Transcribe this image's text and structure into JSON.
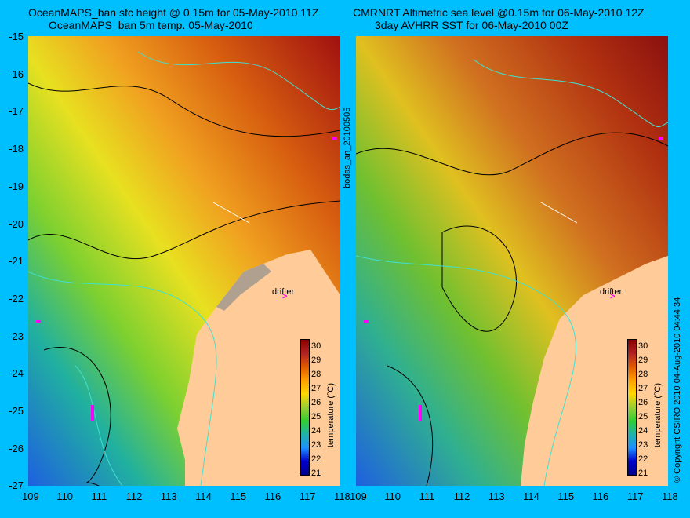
{
  "left_panel": {
    "title_line1": "OceanMAPS_ban sfc height @ 0.15m for 05-May-2010 11Z",
    "title_line2": "OceanMAPS_ban 5m temp. 05-May-2010",
    "drifter_label": "drifter"
  },
  "right_panel": {
    "title_line1": "CMRNRT Altimetric sea level  @0.15m  for 06-May-2010 12Z",
    "title_line2": "3day AVHRR SST for 06-May-2010 00Z",
    "drifter_label": "drifter"
  },
  "axes": {
    "y_ticks": [
      "-15",
      "-16",
      "-17",
      "-18",
      "-19",
      "-20",
      "-21",
      "-22",
      "-23",
      "-24",
      "-25",
      "-26",
      "-27"
    ],
    "x_ticks": [
      "109",
      "110",
      "111",
      "112",
      "113",
      "114",
      "115",
      "116",
      "117",
      "118"
    ]
  },
  "colorbar": {
    "label": "temperature (°C)",
    "ticks": [
      "30",
      "29",
      "28",
      "27",
      "26",
      "25",
      "24",
      "23",
      "22",
      "21"
    ],
    "colors": [
      "#8b0000",
      "#b22222",
      "#e05a00",
      "#ff9f00",
      "#ffd700",
      "#9acd32",
      "#32cd32",
      "#20b2aa",
      "#1e90ff",
      "#0000cd",
      "#00008b"
    ]
  },
  "side_text": "bodas_an_20100505",
  "copyright": "© Copyright CSIRO 2010  04-Aug-2010 04:44:34",
  "map_colors": {
    "land": "#ffcc99",
    "coast_shelf": "#b0a090"
  }
}
